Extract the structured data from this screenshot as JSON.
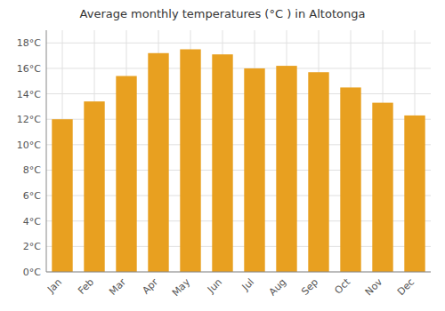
{
  "chart_data": {
    "type": "bar",
    "title": "Average monthly temperatures (°C ) in Altotonga",
    "categories": [
      "Jan",
      "Feb",
      "Mar",
      "Apr",
      "May",
      "Jun",
      "Jul",
      "Aug",
      "Sep",
      "Oct",
      "Nov",
      "Dec"
    ],
    "values": [
      12.0,
      13.4,
      15.4,
      17.2,
      17.5,
      17.1,
      16.0,
      16.2,
      15.7,
      14.5,
      13.3,
      12.3
    ],
    "color": "#E8A020",
    "ylim": [
      0,
      19
    ],
    "yticks": [
      {
        "value": 0,
        "label": "0°C"
      },
      {
        "value": 2,
        "label": "2°C"
      },
      {
        "value": 4,
        "label": "4°C"
      },
      {
        "value": 6,
        "label": "6°C"
      },
      {
        "value": 8,
        "label": "8°C"
      },
      {
        "value": 10,
        "label": "10°C"
      },
      {
        "value": 12,
        "label": "12°C"
      },
      {
        "value": 14,
        "label": "14°C"
      },
      {
        "value": 16,
        "label": "16°C"
      },
      {
        "value": 18,
        "label": "18°C"
      }
    ],
    "grid": true
  }
}
